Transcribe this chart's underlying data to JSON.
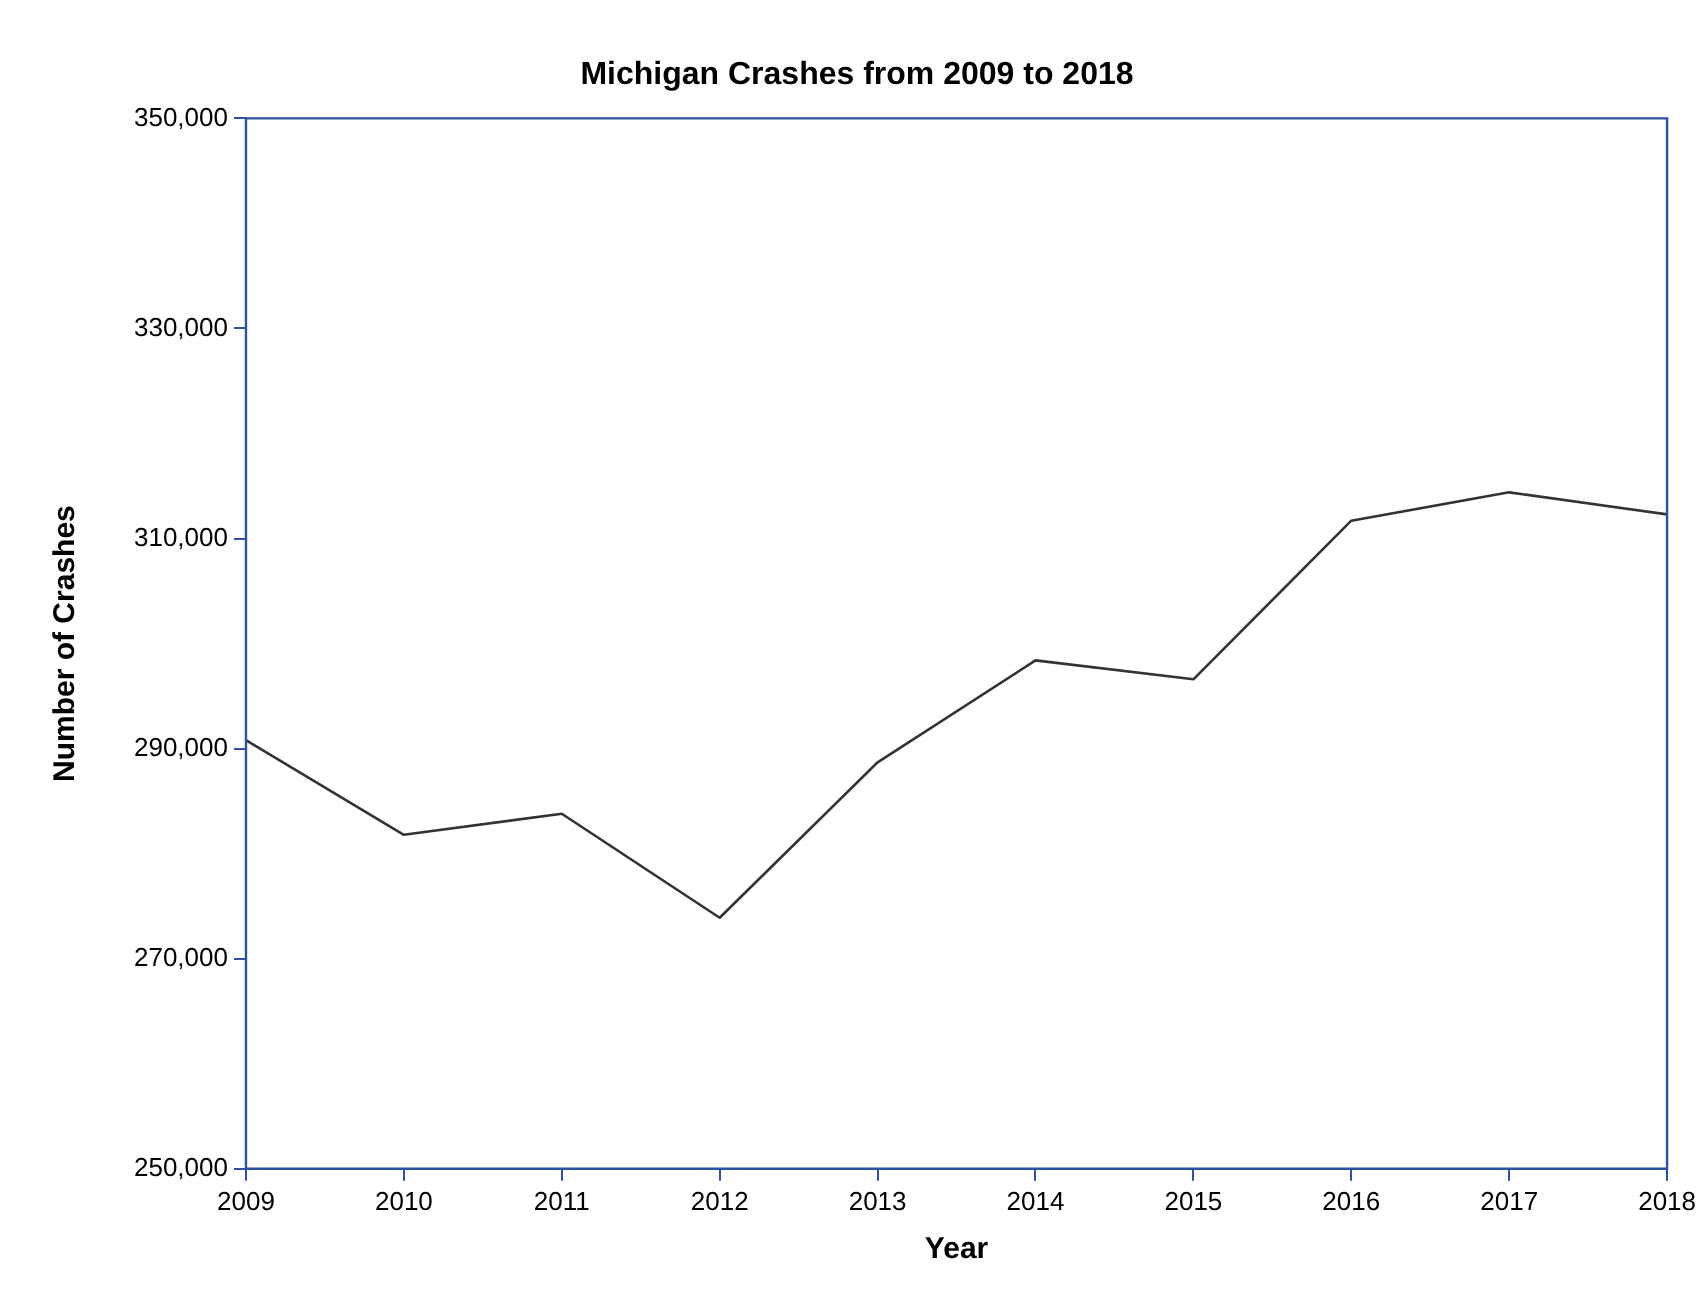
{
  "chart_data": {
    "type": "line",
    "title": "Michigan Crashes from 2009 to 2018",
    "xlabel": "Year",
    "ylabel": "Number of Crashes",
    "x": [
      2009,
      2010,
      2011,
      2012,
      2013,
      2014,
      2015,
      2016,
      2017,
      2018
    ],
    "series": [
      {
        "color": "#333333",
        "values": [
          290800,
          281800,
          283800,
          273900,
          288700,
          298400,
          296600,
          311700,
          314400,
          312300
        ]
      }
    ],
    "xlim": [
      2009,
      2018
    ],
    "xticks": [
      2009,
      2010,
      2011,
      2012,
      2013,
      2014,
      2015,
      2016,
      2017,
      2018
    ],
    "ylim": [
      250000,
      350000
    ],
    "yticks": [
      {
        "value": 250000,
        "label": "250,000"
      },
      {
        "value": 270000,
        "label": "270,000"
      },
      {
        "value": 290000,
        "label": "290,000"
      },
      {
        "value": 310000,
        "label": "310,000"
      },
      {
        "value": 330000,
        "label": "330,000"
      },
      {
        "value": 350000,
        "label": "350,000"
      }
    ],
    "grid": false,
    "legend": false,
    "marker": "none",
    "line_style": "solid"
  }
}
